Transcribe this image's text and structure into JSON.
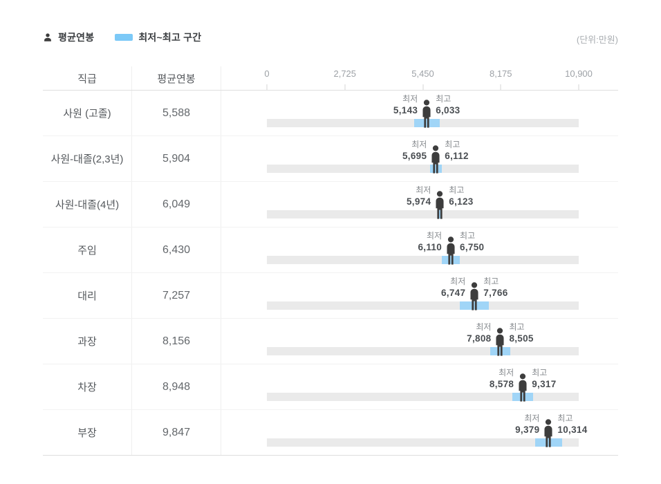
{
  "legend": {
    "avg_label": "평균연봉",
    "range_label": "최저~최고 구간"
  },
  "unit_note": "(단위:만원)",
  "table_header": {
    "rank": "직급",
    "avg": "평균연봉"
  },
  "colors": {
    "legend_swatch": "#7cc9f7",
    "range_fill": "#a0d5f7",
    "track": "#eaeaea",
    "person": "#3d3d3d"
  },
  "chart_data": {
    "type": "bar",
    "unit": "만원",
    "min_label": "최저",
    "max_label": "최고",
    "axis": {
      "min": 0,
      "max": 10900,
      "ticks": [
        0,
        2725,
        5450,
        8175,
        10900
      ],
      "tick_labels": [
        "0",
        "2,725",
        "5,450",
        "8,175",
        "10,900"
      ]
    },
    "rows": [
      {
        "rank": "사원 (고졸)",
        "avg": 5588,
        "min": 5143,
        "max": 6033,
        "avg_text": "5,588",
        "min_text": "5,143",
        "max_text": "6,033"
      },
      {
        "rank": "사원-대졸(2,3년)",
        "avg": 5904,
        "min": 5695,
        "max": 6112,
        "avg_text": "5,904",
        "min_text": "5,695",
        "max_text": "6,112"
      },
      {
        "rank": "사원-대졸(4년)",
        "avg": 6049,
        "min": 5974,
        "max": 6123,
        "avg_text": "6,049",
        "min_text": "5,974",
        "max_text": "6,123"
      },
      {
        "rank": "주임",
        "avg": 6430,
        "min": 6110,
        "max": 6750,
        "avg_text": "6,430",
        "min_text": "6,110",
        "max_text": "6,750"
      },
      {
        "rank": "대리",
        "avg": 7257,
        "min": 6747,
        "max": 7766,
        "avg_text": "7,257",
        "min_text": "6,747",
        "max_text": "7,766"
      },
      {
        "rank": "과장",
        "avg": 8156,
        "min": 7808,
        "max": 8505,
        "avg_text": "8,156",
        "min_text": "7,808",
        "max_text": "8,505"
      },
      {
        "rank": "차장",
        "avg": 8948,
        "min": 8578,
        "max": 9317,
        "avg_text": "8,948",
        "min_text": "8,578",
        "max_text": "9,317"
      },
      {
        "rank": "부장",
        "avg": 9847,
        "min": 9379,
        "max": 10314,
        "avg_text": "9,847",
        "min_text": "9,379",
        "max_text": "10,314"
      }
    ]
  }
}
